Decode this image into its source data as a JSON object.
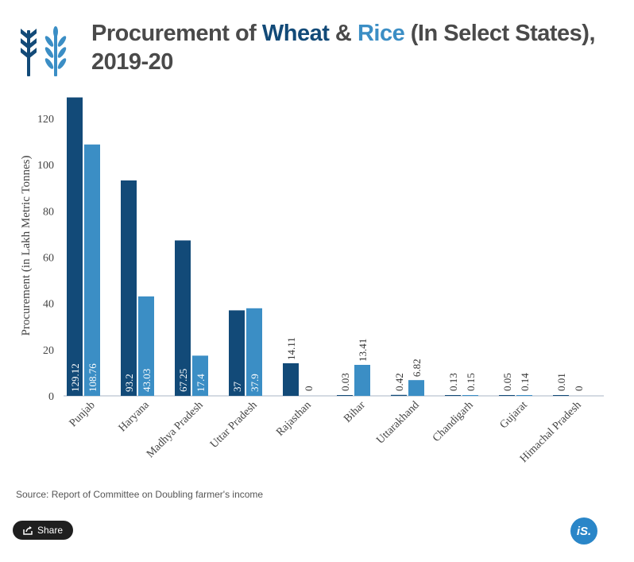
{
  "header": {
    "title_prefix": "Procurement of ",
    "title_wheat": "Wheat",
    "title_amp": " & ",
    "title_rice": "Rice",
    "title_suffix": " (In Select States), 2019-20"
  },
  "colors": {
    "wheat": "#124a78",
    "rice": "#3b8ec5",
    "logo": "#3b8ec5"
  },
  "chart_data": {
    "type": "bar",
    "title": "Procurement of Wheat & Rice (In Select States), 2019-20",
    "xlabel": "",
    "ylabel": "Procurement (in Lakh Metric Tonnes)",
    "ylim": [
      0,
      130
    ],
    "yticks": [
      0,
      20,
      40,
      60,
      80,
      100,
      120
    ],
    "categories": [
      "Punjab",
      "Haryana",
      "Madhya Pradesh",
      "Uttar Pradesh",
      "Rajasthan",
      "Bihar",
      "Uttarakhand",
      "Chandigarh",
      "Gujarat",
      "Himachal Pradesh"
    ],
    "series": [
      {
        "values": [
          129.12,
          93.2,
          67.25,
          37,
          14.11,
          0.03,
          0.42,
          0.13,
          0.05,
          0.01
        ],
        "labels": [
          "129.12",
          "93.2",
          "67.25",
          "37",
          "14.11",
          "0.03",
          "0.42",
          "0.13",
          "0.05",
          "0.01"
        ]
      },
      {
        "values": [
          108.76,
          43.03,
          17.4,
          37.9,
          0,
          13.41,
          6.82,
          0.15,
          0.14,
          0
        ],
        "labels": [
          "108.76",
          "43.03",
          "17.4",
          "37.9",
          "0",
          "13.41",
          "6.82",
          "0.15",
          "0.14",
          "0"
        ]
      }
    ],
    "grid": false,
    "legend": "none"
  },
  "footer": {
    "source": "Source: Report of Committee on Doubling farmer's income",
    "share_label": "Share",
    "brand": "iS."
  }
}
